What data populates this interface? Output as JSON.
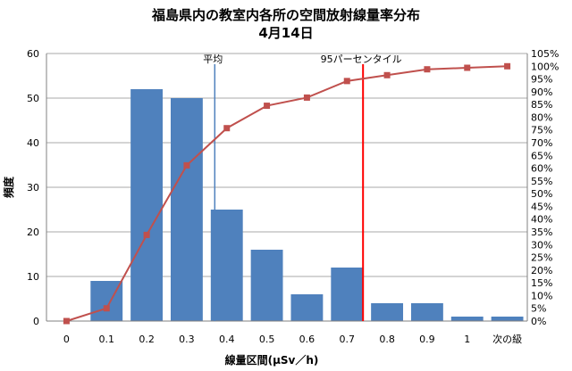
{
  "chart_data": {
    "type": "bar",
    "title": "福島県内の教室内各所の空間放射線量率分布",
    "subtitle": "4月14日",
    "xlabel": "線量区間(μSv／h)",
    "ylabel": "頻度",
    "categories": [
      "0",
      "0.1",
      "0.2",
      "0.3",
      "0.4",
      "0.5",
      "0.6",
      "0.7",
      "0.8",
      "0.9",
      "1",
      "次の級"
    ],
    "ylim": [
      0,
      60
    ],
    "yticks": [
      "0",
      "10",
      "20",
      "30",
      "40",
      "50",
      "60"
    ],
    "y2lim": [
      0,
      105
    ],
    "y2ticks": [
      "0%",
      "5%",
      "10%",
      "15%",
      "20%",
      "25%",
      "30%",
      "35%",
      "40%",
      "45%",
      "50%",
      "55%",
      "60%",
      "65%",
      "70%",
      "75%",
      "80%",
      "85%",
      "90%",
      "95%",
      "100%",
      "105%"
    ],
    "grid": true,
    "series": [
      {
        "type": "bar",
        "axis": "left",
        "color": "#4f81bd",
        "values": [
          0,
          9,
          52,
          50,
          25,
          16,
          6,
          12,
          4,
          4,
          1,
          1
        ]
      },
      {
        "type": "line",
        "axis": "right",
        "color": "#c0504d",
        "values": [
          0,
          5,
          33.8,
          61.1,
          75.7,
          84.5,
          87.7,
          94.2,
          96.5,
          98.8,
          99.4,
          100
        ]
      }
    ],
    "reference_lines": [
      {
        "label": "平均",
        "x": 0.37,
        "color": "#4f81bd"
      },
      {
        "label": "95パーセンタイル",
        "x": 0.74,
        "color": "#ff0000"
      }
    ]
  }
}
